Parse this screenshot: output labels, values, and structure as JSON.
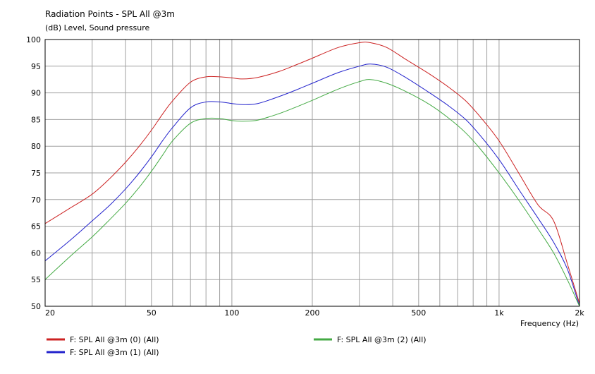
{
  "chart_data": {
    "type": "line",
    "title": "Radiation Points - SPL All @3m",
    "ylabel": "(dB)  Level, Sound pressure",
    "xlabel": "Frequency  (Hz)",
    "x_scale": "log",
    "xlim": [
      20,
      2000
    ],
    "ylim": [
      50,
      100
    ],
    "grid": true,
    "legend_position": "bottom",
    "y_ticks": [
      "50",
      "55",
      "60",
      "65",
      "70",
      "75",
      "80",
      "85",
      "90",
      "95",
      "100"
    ],
    "x_ticks": [
      {
        "value": 20,
        "label": "20"
      },
      {
        "value": 50,
        "label": "50"
      },
      {
        "value": 100,
        "label": "100"
      },
      {
        "value": 200,
        "label": "200"
      },
      {
        "value": 500,
        "label": "500"
      },
      {
        "value": 1000,
        "label": "1k"
      },
      {
        "value": 2000,
        "label": "2k"
      }
    ],
    "series": [
      {
        "name": "F: SPL All @3m (0)  (All)",
        "color": "#cc2222",
        "x": [
          20,
          25,
          30,
          35,
          40,
          45,
          50,
          55,
          60,
          70,
          80,
          90,
          100,
          110,
          125,
          150,
          175,
          200,
          250,
          300,
          330,
          380,
          450,
          550,
          650,
          750,
          850,
          1000,
          1200,
          1400,
          1600,
          1800,
          2000
        ],
        "y": [
          65.5,
          68.5,
          71,
          74,
          77,
          80,
          83,
          86,
          88.5,
          92,
          93,
          93,
          92.8,
          92.6,
          92.9,
          94,
          95.3,
          96.5,
          98.5,
          99.4,
          99.4,
          98.5,
          96.2,
          93.5,
          91,
          88.5,
          85.5,
          81,
          74.5,
          69,
          66,
          58,
          50.5
        ]
      },
      {
        "name": "F: SPL All @3m (1)  (All)",
        "color": "#2222cc",
        "x": [
          20,
          25,
          30,
          35,
          40,
          45,
          50,
          55,
          60,
          70,
          80,
          90,
          100,
          110,
          125,
          150,
          175,
          200,
          250,
          300,
          330,
          380,
          450,
          550,
          650,
          750,
          850,
          1000,
          1200,
          1400,
          1600,
          1800,
          2000
        ],
        "y": [
          58.5,
          62.5,
          66,
          69,
          72,
          75,
          78,
          81,
          83.5,
          87.2,
          88.3,
          88.3,
          88,
          87.8,
          88,
          89.3,
          90.6,
          91.8,
          93.8,
          95,
          95.4,
          94.8,
          92.8,
          90,
          87.5,
          85,
          82,
          77.5,
          71.5,
          66.5,
          62,
          57,
          50
        ]
      },
      {
        "name": "F: SPL All @3m (2)  (All)",
        "color": "#44aa44",
        "x": [
          20,
          25,
          30,
          35,
          40,
          45,
          50,
          55,
          60,
          70,
          80,
          90,
          100,
          110,
          125,
          150,
          175,
          200,
          250,
          300,
          330,
          380,
          450,
          550,
          650,
          750,
          850,
          1000,
          1200,
          1400,
          1600,
          1800,
          2000
        ],
        "y": [
          55,
          59.5,
          63,
          66.3,
          69.3,
          72.3,
          75.3,
          78.3,
          81,
          84.3,
          85.2,
          85.2,
          84.8,
          84.7,
          84.9,
          86.1,
          87.4,
          88.6,
          90.7,
          92.1,
          92.5,
          91.8,
          90.2,
          87.8,
          85.2,
          82.5,
          79.5,
          75,
          69.5,
          64.5,
          60,
          55,
          50
        ]
      }
    ]
  }
}
